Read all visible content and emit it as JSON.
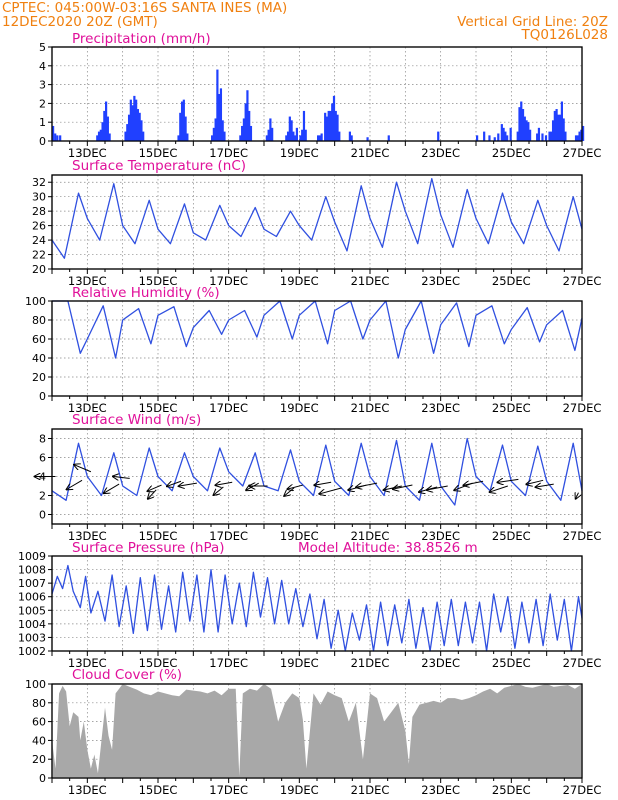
{
  "header": {
    "line1_left": "CPTEC:   045:00W-03:16S   SANTA INES (MA)",
    "line1_right": "Vertical Grid Line: 20Z",
    "line2_left": "12DEC2020 20Z (GMT)",
    "line2_right": "TQ0126L028"
  },
  "colors": {
    "accent": "#f08010",
    "title": "#e0109a",
    "line": "#3050e0",
    "bar": "#2040ff",
    "cloud": "#a8a8a8"
  },
  "x_ticks": [
    "13DEC",
    "15DEC",
    "17DEC",
    "19DEC",
    "21DEC",
    "23DEC",
    "25DEC",
    "27DEC"
  ],
  "panels": {
    "precip": {
      "type": "bar",
      "title": "Precipitation (mm/h)",
      "ylim": [
        0,
        5
      ],
      "yticks": [
        "0",
        "1",
        "2",
        "3",
        "4",
        "5"
      ],
      "data": [
        [
          0,
          0.8
        ],
        [
          0.06,
          0.4
        ],
        [
          0.12,
          0.3
        ],
        [
          0.2,
          0.3
        ],
        [
          1.25,
          0.3
        ],
        [
          1.3,
          0.5
        ],
        [
          1.35,
          0.6
        ],
        [
          1.4,
          1
        ],
        [
          1.45,
          1.6
        ],
        [
          1.5,
          2.1
        ],
        [
          1.55,
          1.3
        ],
        [
          1.6,
          0.4
        ],
        [
          2.05,
          0.5
        ],
        [
          2.1,
          0.9
        ],
        [
          2.15,
          1.4
        ],
        [
          2.2,
          2.2
        ],
        [
          2.25,
          1.9
        ],
        [
          2.3,
          2.4
        ],
        [
          2.35,
          2.2
        ],
        [
          2.4,
          1.7
        ],
        [
          2.45,
          1.5
        ],
        [
          2.5,
          1.1
        ],
        [
          2.55,
          0.5
        ],
        [
          3.55,
          0.3
        ],
        [
          3.6,
          1.5
        ],
        [
          3.65,
          2.1
        ],
        [
          3.7,
          2.2
        ],
        [
          3.75,
          1.3
        ],
        [
          3.8,
          0.4
        ],
        [
          4.5,
          0.3
        ],
        [
          4.55,
          0.7
        ],
        [
          4.6,
          1.2
        ],
        [
          4.65,
          3.8
        ],
        [
          4.7,
          2.5
        ],
        [
          4.75,
          2.8
        ],
        [
          4.8,
          1.1
        ],
        [
          4.85,
          0.5
        ],
        [
          5.3,
          0.3
        ],
        [
          5.35,
          0.8
        ],
        [
          5.4,
          1.2
        ],
        [
          5.45,
          2
        ],
        [
          5.5,
          2.7
        ],
        [
          5.55,
          1.6
        ],
        [
          5.6,
          0.8
        ],
        [
          6.05,
          0.3
        ],
        [
          6.1,
          0.6
        ],
        [
          6.15,
          1.2
        ],
        [
          6.2,
          0.7
        ],
        [
          6.6,
          0.3
        ],
        [
          6.65,
          0.5
        ],
        [
          6.7,
          1.3
        ],
        [
          6.75,
          1.1
        ],
        [
          6.8,
          0.5
        ],
        [
          6.85,
          0.3
        ],
        [
          6.9,
          0.7
        ],
        [
          7,
          0.3
        ],
        [
          7.05,
          0.6
        ],
        [
          7.1,
          1.6
        ],
        [
          7.15,
          0.6
        ],
        [
          7.5,
          0.3
        ],
        [
          7.55,
          0.3
        ],
        [
          7.6,
          0.4
        ],
        [
          7.7,
          1.5
        ],
        [
          7.75,
          1.3
        ],
        [
          7.8,
          1.6
        ],
        [
          7.85,
          1.6
        ],
        [
          7.9,
          2
        ],
        [
          7.95,
          2.4
        ],
        [
          8,
          1.6
        ],
        [
          8.05,
          1.4
        ],
        [
          8.1,
          0.5
        ],
        [
          8.4,
          0.5
        ],
        [
          8.45,
          0.3
        ],
        [
          8.9,
          0.2
        ],
        [
          9.5,
          0.3
        ],
        [
          10.9,
          0.5
        ],
        [
          12,
          0.3
        ],
        [
          12.2,
          0.5
        ],
        [
          12.35,
          0.3
        ],
        [
          12.5,
          0.2
        ],
        [
          12.6,
          0.4
        ],
        [
          12.7,
          0.9
        ],
        [
          12.75,
          0.7
        ],
        [
          12.8,
          0.5
        ],
        [
          12.85,
          0.3
        ],
        [
          12.95,
          0.7
        ],
        [
          13.15,
          0.5
        ],
        [
          13.2,
          1.8
        ],
        [
          13.25,
          2.1
        ],
        [
          13.3,
          1.7
        ],
        [
          13.35,
          1.3
        ],
        [
          13.4,
          1.1
        ],
        [
          13.45,
          1
        ],
        [
          13.5,
          0.6
        ],
        [
          13.7,
          0.4
        ],
        [
          13.75,
          0.7
        ],
        [
          13.85,
          0.4
        ],
        [
          13.95,
          0.3
        ],
        [
          14.05,
          0.5
        ],
        [
          14.1,
          0.5
        ],
        [
          14.15,
          1.1
        ],
        [
          14.2,
          1.6
        ],
        [
          14.25,
          1.7
        ],
        [
          14.3,
          1.4
        ],
        [
          14.35,
          1.4
        ],
        [
          14.4,
          2.1
        ],
        [
          14.45,
          1.2
        ],
        [
          14.5,
          0.5
        ],
        [
          14.8,
          0.3
        ],
        [
          14.85,
          0.3
        ],
        [
          14.9,
          0.5
        ],
        [
          14.95,
          0.6
        ],
        [
          15,
          0.8
        ]
      ]
    },
    "temp": {
      "type": "line",
      "title": "Surface Temperature (nC)",
      "ylim": [
        20,
        33
      ],
      "yticks": [
        "20",
        "22",
        "24",
        "26",
        "28",
        "30",
        "32"
      ],
      "x": [
        0,
        0.35,
        0.75,
        1,
        1.35,
        1.75,
        2,
        2.35,
        2.75,
        3,
        3.35,
        3.75,
        4,
        4.35,
        4.75,
        5,
        5.35,
        5.75,
        6,
        6.35,
        6.75,
        7,
        7.35,
        7.75,
        8,
        8.35,
        8.75,
        9,
        9.35,
        9.75,
        10,
        10.35,
        10.75,
        11,
        11.35,
        11.75,
        12,
        12.35,
        12.75,
        13,
        13.35,
        13.75,
        14,
        14.35,
        14.75,
        15
      ],
      "y": [
        24,
        21.5,
        30.5,
        27,
        24,
        31.8,
        26,
        23.5,
        29.5,
        25.5,
        23.5,
        29,
        25,
        24,
        28.8,
        26,
        24.5,
        28.5,
        25.5,
        24.5,
        28,
        26,
        24,
        30,
        26.5,
        22.5,
        31.5,
        27,
        23,
        32,
        28,
        23.5,
        32.5,
        27.5,
        23,
        31,
        27,
        23.5,
        30.5,
        26.5,
        23.5,
        29.5,
        26,
        22.5,
        30,
        25.5
      ]
    },
    "rh": {
      "type": "line",
      "title": "Relative Humidity (%)",
      "ylim": [
        0,
        100
      ],
      "yticks": [
        "0",
        "20",
        "40",
        "60",
        "80",
        "100"
      ],
      "x": [
        0,
        0.45,
        0.8,
        1,
        1.45,
        1.8,
        2,
        2.45,
        2.8,
        3,
        3.45,
        3.8,
        4,
        4.45,
        4.8,
        5,
        5.45,
        5.8,
        6,
        6.45,
        6.8,
        7,
        7.45,
        7.8,
        8,
        8.45,
        8.8,
        9,
        9.45,
        9.8,
        10,
        10.45,
        10.8,
        11,
        11.45,
        11.8,
        12,
        12.45,
        12.8,
        13,
        13.45,
        13.8,
        14,
        14.45,
        14.8,
        15
      ],
      "y": [
        100,
        100,
        45,
        60,
        95,
        40,
        80,
        92,
        55,
        85,
        94,
        52,
        72,
        90,
        65,
        80,
        90,
        62,
        85,
        100,
        60,
        85,
        100,
        55,
        90,
        100,
        60,
        80,
        100,
        40,
        70,
        100,
        45,
        75,
        98,
        52,
        85,
        95,
        55,
        70,
        93,
        57,
        75,
        90,
        48,
        82
      ]
    },
    "wind": {
      "type": "line+vectors",
      "title": "Surface Wind (m/s)",
      "ylim": [
        -1,
        9
      ],
      "yticks": [
        "0",
        "2",
        "4",
        "6",
        "8"
      ],
      "x": [
        0,
        0.4,
        0.75,
        1,
        1.4,
        1.75,
        2,
        2.4,
        2.75,
        3,
        3.4,
        3.75,
        4,
        4.4,
        4.75,
        5,
        5.4,
        5.75,
        6,
        6.4,
        6.75,
        7,
        7.4,
        7.75,
        8,
        8.4,
        8.75,
        9,
        9.4,
        9.75,
        10,
        10.4,
        10.75,
        11,
        11.4,
        11.75,
        12,
        12.4,
        12.75,
        13,
        13.4,
        13.75,
        14,
        14.4,
        14.75,
        15
      ],
      "y": [
        2.5,
        1.5,
        7.5,
        4,
        2,
        6.5,
        3,
        2,
        7,
        4,
        2.5,
        6.5,
        4,
        2.5,
        7,
        4.5,
        3,
        6.5,
        3,
        2.5,
        6.8,
        3.5,
        2,
        7.3,
        3.5,
        2,
        7.5,
        4,
        2,
        7.8,
        3,
        1.5,
        7.5,
        3,
        1,
        8,
        4,
        2.5,
        7.3,
        3.5,
        2,
        7.2,
        3.5,
        1.5,
        7.5,
        2.5
      ],
      "vectors": [
        [
          0.1,
          4,
          -1.5,
          0
        ],
        [
          0.85,
          3.6,
          -1.1,
          -0.9
        ],
        [
          1.1,
          4.5,
          -1.2,
          0.7
        ],
        [
          1.9,
          3.2,
          -1.1,
          -0.9
        ],
        [
          2.2,
          3.8,
          -1.2,
          0.2
        ],
        [
          2.95,
          2.6,
          -0.6,
          -0.9
        ],
        [
          3.1,
          3.1,
          -1,
          -0.6
        ],
        [
          3.65,
          3.5,
          -1,
          -0.5
        ],
        [
          4.1,
          3.3,
          -1.3,
          -0.3
        ],
        [
          4.85,
          2.9,
          -0.7,
          -0.8
        ],
        [
          5.1,
          3.4,
          -1.2,
          -0.3
        ],
        [
          5.85,
          3.3,
          -0.9,
          -0.7
        ],
        [
          6.1,
          3,
          -1.3,
          0
        ],
        [
          6.85,
          2.8,
          -0.7,
          -0.8
        ],
        [
          7.1,
          3.1,
          -1.1,
          -0.4
        ],
        [
          7.9,
          3.4,
          -1.2,
          -0.3
        ],
        [
          8.2,
          2.8,
          -1.6,
          -0.6
        ],
        [
          8.9,
          3.1,
          -1.3,
          -0.5
        ],
        [
          9.2,
          3.3,
          -1.5,
          -0.4
        ],
        [
          9.9,
          3,
          -1.3,
          -0.4
        ],
        [
          10.2,
          3.1,
          -1.4,
          -0.4
        ],
        [
          10.9,
          2.9,
          -1.3,
          -0.5
        ],
        [
          11.2,
          3,
          -1.5,
          -0.4
        ],
        [
          11.9,
          3.3,
          -1.3,
          -0.7
        ],
        [
          12.2,
          3.5,
          -1.4,
          -0.4
        ],
        [
          12.9,
          3,
          -1.3,
          -0.6
        ],
        [
          13.2,
          3.7,
          -1.5,
          -0.3
        ],
        [
          13.9,
          3.6,
          -1.2,
          -0.4
        ],
        [
          14.2,
          3.2,
          -1.3,
          -0.3
        ],
        [
          14.9,
          2.3,
          -0.2,
          -0.6
        ]
      ]
    },
    "pres": {
      "type": "line",
      "title": "Surface Pressure (hPa)",
      "extra": "Model Altitude: 38.8526  m",
      "ylim": [
        1002,
        1009
      ],
      "yticks": [
        "1002",
        "1003",
        "1004",
        "1005",
        "1006",
        "1007",
        "1008",
        "1009"
      ],
      "x": [
        0,
        0.15,
        0.3,
        0.45,
        0.6,
        0.8,
        0.95,
        1.1,
        1.3,
        1.5,
        1.7,
        1.9,
        2.1,
        2.3,
        2.5,
        2.7,
        2.9,
        3.1,
        3.3,
        3.5,
        3.7,
        3.9,
        4.1,
        4.3,
        4.5,
        4.7,
        4.9,
        5.1,
        5.3,
        5.5,
        5.7,
        5.9,
        6.1,
        6.3,
        6.5,
        6.7,
        6.9,
        7.1,
        7.3,
        7.5,
        7.7,
        7.9,
        8.1,
        8.3,
        8.5,
        8.7,
        8.9,
        9.1,
        9.3,
        9.5,
        9.7,
        9.9,
        10.1,
        10.3,
        10.5,
        10.7,
        10.9,
        11.1,
        11.3,
        11.5,
        11.7,
        11.9,
        12.1,
        12.3,
        12.5,
        12.7,
        12.9,
        13.1,
        13.3,
        13.5,
        13.7,
        13.9,
        14.1,
        14.3,
        14.5,
        14.7,
        14.9,
        15
      ],
      "y": [
        1006.2,
        1007.5,
        1006.6,
        1008.3,
        1006.4,
        1005.2,
        1007.5,
        1004.8,
        1006.4,
        1004.2,
        1007.6,
        1003.8,
        1006.8,
        1003.3,
        1007.4,
        1003.5,
        1007.6,
        1003.6,
        1006.8,
        1003.4,
        1007.8,
        1004.2,
        1007.6,
        1003.4,
        1008,
        1003.4,
        1007.6,
        1004,
        1007,
        1003.8,
        1007.8,
        1004.5,
        1007.4,
        1004,
        1007.2,
        1004,
        1006.6,
        1003.8,
        1006.2,
        1002.9,
        1005.8,
        1002.2,
        1005,
        1001.6,
        1004.8,
        1002.8,
        1005.4,
        1001.8,
        1005.6,
        1002.4,
        1005.4,
        1002.6,
        1005.8,
        1002.2,
        1005.2,
        1001.8,
        1005.6,
        1002.4,
        1005.8,
        1002.4,
        1005.6,
        1002.6,
        1005.6,
        1001.8,
        1006.2,
        1003.4,
        1006,
        1002.2,
        1005.6,
        1002.6,
        1005.8,
        1002.4,
        1006.2,
        1002.8,
        1005.8,
        1002,
        1006,
        1004.4
      ]
    },
    "cloud": {
      "type": "area",
      "title": "Cloud Cover (%)",
      "ylim": [
        0,
        100
      ],
      "yticks": [
        "0",
        "20",
        "40",
        "60",
        "80",
        "100"
      ],
      "x": [
        0,
        0.1,
        0.2,
        0.3,
        0.4,
        0.5,
        0.6,
        0.75,
        0.8,
        0.9,
        1,
        1.1,
        1.2,
        1.3,
        1.4,
        1.5,
        1.6,
        1.7,
        1.8,
        1.9,
        2,
        2.2,
        2.4,
        2.6,
        2.8,
        3,
        3.2,
        3.4,
        3.6,
        3.8,
        4,
        4.2,
        4.4,
        4.6,
        4.8,
        5,
        5.2,
        5.3,
        5.4,
        5.6,
        5.8,
        6,
        6.2,
        6.4,
        6.6,
        6.8,
        7,
        7.1,
        7.2,
        7.4,
        7.6,
        7.8,
        8,
        8.2,
        8.4,
        8.6,
        8.8,
        9,
        9.2,
        9.4,
        9.6,
        9.8,
        10,
        10.1,
        10.2,
        10.4,
        10.6,
        10.8,
        11,
        11.2,
        11.4,
        11.6,
        11.8,
        12,
        12.2,
        12.4,
        12.6,
        12.8,
        13,
        13.2,
        13.4,
        13.6,
        13.8,
        14,
        14.2,
        14.4,
        14.6,
        14.8,
        15
      ],
      "y": [
        40,
        10,
        90,
        98,
        92,
        55,
        70,
        65,
        40,
        60,
        30,
        10,
        25,
        5,
        40,
        75,
        45,
        30,
        90,
        95,
        100,
        97,
        94,
        90,
        88,
        92,
        90,
        88,
        87,
        94,
        93,
        92,
        90,
        93,
        88,
        95,
        95,
        2,
        90,
        95,
        93,
        100,
        95,
        60,
        80,
        90,
        85,
        62,
        10,
        90,
        78,
        92,
        88,
        85,
        60,
        80,
        20,
        90,
        85,
        60,
        70,
        80,
        50,
        15,
        65,
        78,
        80,
        82,
        80,
        85,
        85,
        83,
        85,
        88,
        92,
        95,
        90,
        96,
        98,
        100,
        97,
        96,
        98,
        100,
        97,
        98,
        99,
        95,
        100
      ]
    }
  }
}
